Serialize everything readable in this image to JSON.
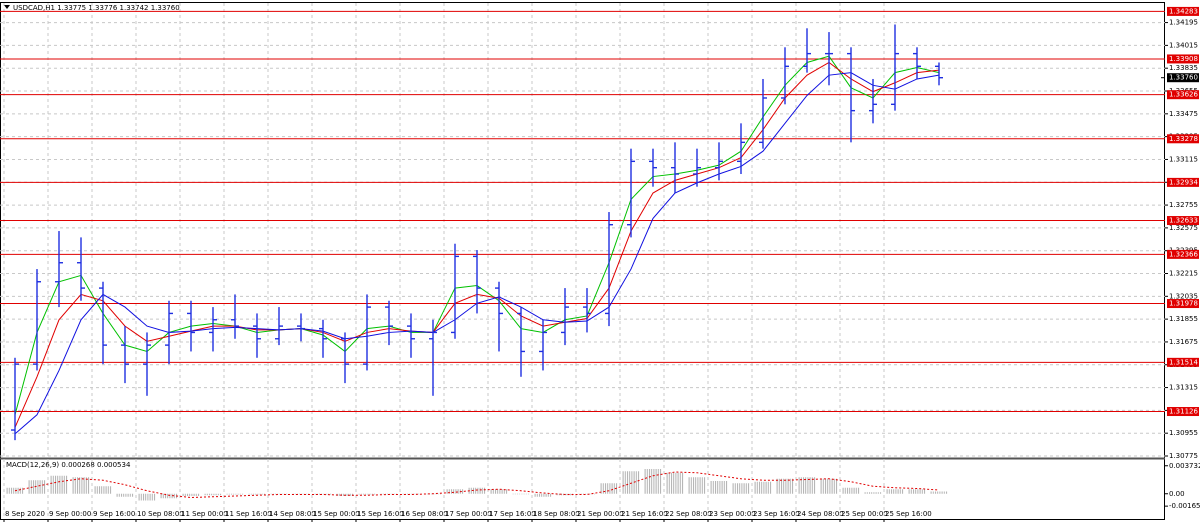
{
  "chart_data": {
    "type": "ohlc",
    "title": "USDCAD,H1  1.33775 1.33776 1.33742 1.33760",
    "categories": [
      "8 Sep 2020",
      null,
      "9 Sep 00:00",
      null,
      "9 Sep 16:00",
      null,
      "10 Sep 08:00",
      null,
      "11 Sep 00:00",
      null,
      "11 Sep 16:00",
      null,
      "14 Sep 08:00",
      null,
      "15 Sep 00:00",
      null,
      "15 Sep 16:00",
      null,
      "16 Sep 08:00",
      null,
      "17 Sep 00:00",
      null,
      "17 Sep 16:00",
      null,
      "18 Sep 08:00",
      null,
      "21 Sep 00:00",
      null,
      "21 Sep 16:00",
      null,
      "22 Sep 08:00",
      null,
      "23 Sep 00:00",
      null,
      "23 Sep 16:00",
      null,
      "24 Sep 08:00",
      null,
      "25 Sep 00:00",
      null,
      "25 Sep 16:00",
      null,
      null
    ],
    "open": [
      1.3098,
      1.315,
      1.3215,
      1.323,
      1.321,
      1.3165,
      1.315,
      1.3165,
      1.319,
      1.3175,
      1.3185,
      1.318,
      1.317,
      1.318,
      1.3178,
      1.317,
      1.315,
      1.3195,
      1.318,
      1.317,
      1.3175,
      1.3235,
      1.321,
      1.319,
      1.316,
      1.3175,
      1.3195,
      1.319,
      1.326,
      1.331,
      1.3305,
      1.33,
      1.3305,
      1.331,
      1.3325,
      1.336,
      1.3385,
      1.3395,
      1.3395,
      1.335,
      1.3355,
      1.3395,
      1.3385
    ],
    "high": [
      1.3155,
      1.3225,
      1.3255,
      1.325,
      1.3215,
      1.318,
      1.3175,
      1.32,
      1.32,
      1.3195,
      1.3205,
      1.319,
      1.3195,
      1.319,
      1.3185,
      1.3175,
      1.3205,
      1.32,
      1.319,
      1.3185,
      1.3245,
      1.324,
      1.3215,
      1.3195,
      1.3185,
      1.321,
      1.321,
      1.327,
      1.332,
      1.332,
      1.3325,
      1.332,
      1.3325,
      1.334,
      1.3375,
      1.34,
      1.3415,
      1.3412,
      1.34,
      1.3375,
      1.3418,
      1.34,
      1.3388
    ],
    "low": [
      1.309,
      1.3145,
      1.3195,
      1.32,
      1.315,
      1.3135,
      1.3125,
      1.315,
      1.316,
      1.316,
      1.317,
      1.3155,
      1.3165,
      1.3168,
      1.3155,
      1.3135,
      1.3145,
      1.3165,
      1.3155,
      1.3125,
      1.317,
      1.319,
      1.316,
      1.314,
      1.3145,
      1.3165,
      1.3175,
      1.318,
      1.325,
      1.329,
      1.3285,
      1.329,
      1.3295,
      1.33,
      1.332,
      1.3355,
      1.338,
      1.337,
      1.3325,
      1.334,
      1.335,
      1.3375,
      1.337
    ],
    "close": [
      1.315,
      1.3215,
      1.323,
      1.321,
      1.3165,
      1.315,
      1.3165,
      1.319,
      1.3175,
      1.3185,
      1.318,
      1.317,
      1.318,
      1.3178,
      1.317,
      1.315,
      1.3195,
      1.318,
      1.317,
      1.3175,
      1.3235,
      1.321,
      1.319,
      1.316,
      1.3175,
      1.3195,
      1.319,
      1.326,
      1.331,
      1.3305,
      1.33,
      1.3305,
      1.331,
      1.3325,
      1.336,
      1.3385,
      1.3395,
      1.3395,
      1.335,
      1.3355,
      1.3395,
      1.3385,
      1.3376
    ],
    "color": "#1f2fe0",
    "moving_averages": [
      {
        "color": "#00c000",
        "values": [
          1.311,
          1.3175,
          1.3215,
          1.322,
          1.319,
          1.3165,
          1.316,
          1.3175,
          1.318,
          1.3182,
          1.318,
          1.3175,
          1.3177,
          1.3178,
          1.3173,
          1.316,
          1.3178,
          1.318,
          1.3175,
          1.3175,
          1.321,
          1.3212,
          1.32,
          1.3178,
          1.3175,
          1.3185,
          1.3188,
          1.323,
          1.328,
          1.3298,
          1.33,
          1.3303,
          1.3307,
          1.3318,
          1.3345,
          1.337,
          1.3388,
          1.3393,
          1.3368,
          1.336,
          1.338,
          1.3384,
          1.338
        ]
      },
      {
        "color": "#e00000",
        "values": [
          1.31,
          1.314,
          1.3185,
          1.3205,
          1.32,
          1.318,
          1.3168,
          1.3172,
          1.3176,
          1.318,
          1.318,
          1.3177,
          1.3177,
          1.3178,
          1.3175,
          1.3168,
          1.3175,
          1.3178,
          1.3176,
          1.3175,
          1.3198,
          1.3205,
          1.3202,
          1.3188,
          1.318,
          1.3183,
          1.3186,
          1.321,
          1.3255,
          1.3285,
          1.3295,
          1.33,
          1.3305,
          1.3313,
          1.3335,
          1.336,
          1.3378,
          1.3388,
          1.3375,
          1.3365,
          1.3372,
          1.338,
          1.3382
        ]
      },
      {
        "color": "#1010e0",
        "values": [
          1.3095,
          1.311,
          1.3145,
          1.3185,
          1.3205,
          1.3195,
          1.318,
          1.3175,
          1.3176,
          1.3178,
          1.3179,
          1.3178,
          1.3177,
          1.3178,
          1.3176,
          1.317,
          1.3172,
          1.3175,
          1.3176,
          1.3175,
          1.3185,
          1.3198,
          1.3203,
          1.3195,
          1.3185,
          1.3183,
          1.3184,
          1.3195,
          1.3225,
          1.3265,
          1.3285,
          1.3293,
          1.33,
          1.3306,
          1.3318,
          1.334,
          1.3362,
          1.3378,
          1.338,
          1.337,
          1.3367,
          1.3375,
          1.3378
        ]
      }
    ],
    "ylim": [
      1.30775,
      1.3431
    ],
    "yticks": [
      1.30775,
      1.30955,
      1.31135,
      1.31315,
      1.31495,
      1.31675,
      1.31855,
      1.32035,
      1.32215,
      1.32395,
      1.32575,
      1.32755,
      1.32935,
      1.33115,
      1.33295,
      1.33475,
      1.33655,
      1.33835,
      1.34015,
      1.34195
    ],
    "grid": true,
    "levels": {
      "color": "#e00000",
      "values": [
        1.34283,
        1.33908,
        1.33626,
        1.33278,
        1.32934,
        1.32633,
        1.32366,
        1.31978,
        1.31514,
        1.31126
      ]
    },
    "current_price": {
      "value": 1.3376,
      "label": "1.33760"
    },
    "macd": {
      "label": "MACD(12,26,9) 0.000268 0.000534",
      "ylim": [
        -0.0019,
        0.0041
      ],
      "yticks": [
        {
          "value": 0.003732,
          "label": "0.003732"
        },
        {
          "value": 0,
          "label": "0.00"
        },
        {
          "value": -0.001652,
          "label": "-0.001652"
        }
      ],
      "histogram": {
        "color": "#b0b0b0",
        "values": [
          0.0008,
          0.0018,
          0.0024,
          0.0022,
          0.001,
          -0.0004,
          -0.0009,
          -0.0006,
          -0.0003,
          -0.0002,
          -0.0001,
          -0.0001,
          0.0,
          0.0,
          -0.0001,
          -0.0003,
          -0.0001,
          0.0,
          0.0,
          0.0,
          0.0006,
          0.0008,
          0.0006,
          0.0,
          -0.0004,
          -0.0002,
          0.0,
          0.0014,
          0.003,
          0.0033,
          0.0028,
          0.0022,
          0.0017,
          0.0014,
          0.0016,
          0.002,
          0.0022,
          0.002,
          0.0008,
          0.0002,
          0.0006,
          0.0006,
          0.0003
        ]
      },
      "signal": {
        "color": "#e00000",
        "values": [
          0.0004,
          0.001,
          0.0016,
          0.002,
          0.0018,
          0.0012,
          0.0004,
          -0.0002,
          -0.0005,
          -0.0004,
          -0.0003,
          -0.0002,
          -0.0001,
          -0.0001,
          -0.0001,
          -0.0002,
          -0.0002,
          -0.0001,
          -0.0001,
          0.0,
          0.0002,
          0.0005,
          0.0006,
          0.0004,
          0.0001,
          -0.0001,
          -0.0001,
          0.0004,
          0.0014,
          0.0024,
          0.0029,
          0.0028,
          0.0024,
          0.002,
          0.0018,
          0.0018,
          0.0019,
          0.002,
          0.0016,
          0.001,
          0.0008,
          0.0007,
          0.0005
        ]
      }
    }
  }
}
